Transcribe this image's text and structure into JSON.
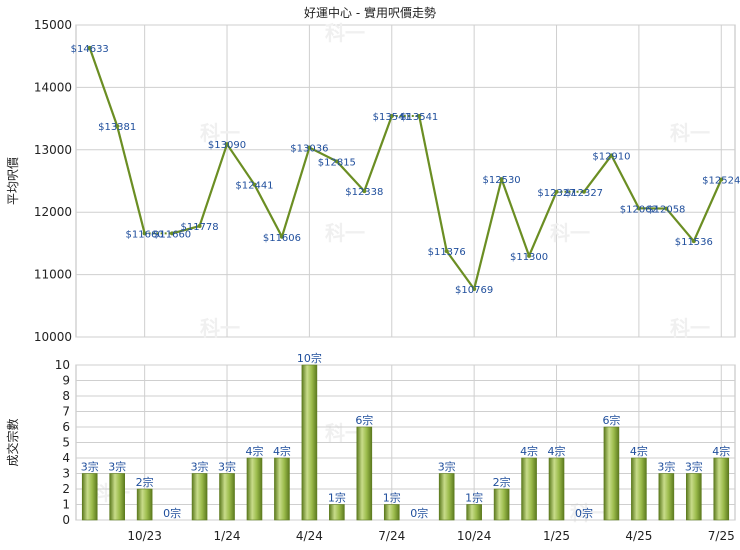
{
  "chart_data": [
    {
      "type": "line",
      "title": "好運中心 - 實用呎價走勢",
      "xlabel": "",
      "ylabel": "平均呎價",
      "ylim": [
        10000,
        15000
      ],
      "yticks": [
        10000,
        11000,
        12000,
        13000,
        14000,
        15000
      ],
      "grid": true,
      "series": [
        {
          "color": "#6b8e23",
          "values": [
            14633,
            13381,
            11660,
            11660,
            11778,
            13090,
            12441,
            11606,
            13036,
            12815,
            12338,
            13541,
            13541,
            11376,
            10769,
            12530,
            11300,
            12327,
            12327,
            12910,
            12062,
            12058,
            11536,
            12524
          ],
          "labels": [
            "$14633",
            "$13381",
            "$11660",
            "$11660",
            "$11778",
            "$13090",
            "$12441",
            "$11606",
            "$13036",
            "$12815",
            "$12338",
            "$13541",
            "$13541",
            "$11376",
            "$10769",
            "$12530",
            "$11300",
            "$12327",
            "$12327",
            "$12910",
            "$12062",
            "$12058",
            "$11536",
            "$12524"
          ],
          "dashed_segments": [
            [
              2,
              3
            ],
            [
              11,
              12
            ],
            [
              17,
              18
            ]
          ]
        }
      ]
    },
    {
      "type": "bar",
      "xlabel": "",
      "ylabel": "成交宗數",
      "ylim": [
        0,
        10
      ],
      "yticks": [
        0,
        1,
        2,
        3,
        4,
        5,
        6,
        7,
        8,
        9,
        10
      ],
      "grid": true,
      "color": "#7a9a30",
      "values": [
        3,
        3,
        2,
        0,
        3,
        3,
        4,
        4,
        10,
        1,
        6,
        1,
        0,
        3,
        1,
        2,
        4,
        4,
        0,
        6,
        4,
        3,
        3,
        4
      ],
      "labels": [
        "3宗",
        "3宗",
        "2宗",
        "0宗",
        "3宗",
        "3宗",
        "4宗",
        "4宗",
        "10宗",
        "1宗",
        "6宗",
        "1宗",
        "0宗",
        "3宗",
        "1宗",
        "2宗",
        "4宗",
        "4宗",
        "0宗",
        "6宗",
        "4宗",
        "3宗",
        "3宗",
        "4宗"
      ],
      "x_tick_labels": [
        {
          "index": 2,
          "label": "10/23"
        },
        {
          "index": 5,
          "label": "1/24"
        },
        {
          "index": 8,
          "label": "4/24"
        },
        {
          "index": 11,
          "label": "7/24"
        },
        {
          "index": 14,
          "label": "10/24"
        },
        {
          "index": 17,
          "label": "1/25"
        },
        {
          "index": 20,
          "label": "4/25"
        },
        {
          "index": 23,
          "label": "7/25"
        }
      ]
    }
  ],
  "watermark": "科一"
}
